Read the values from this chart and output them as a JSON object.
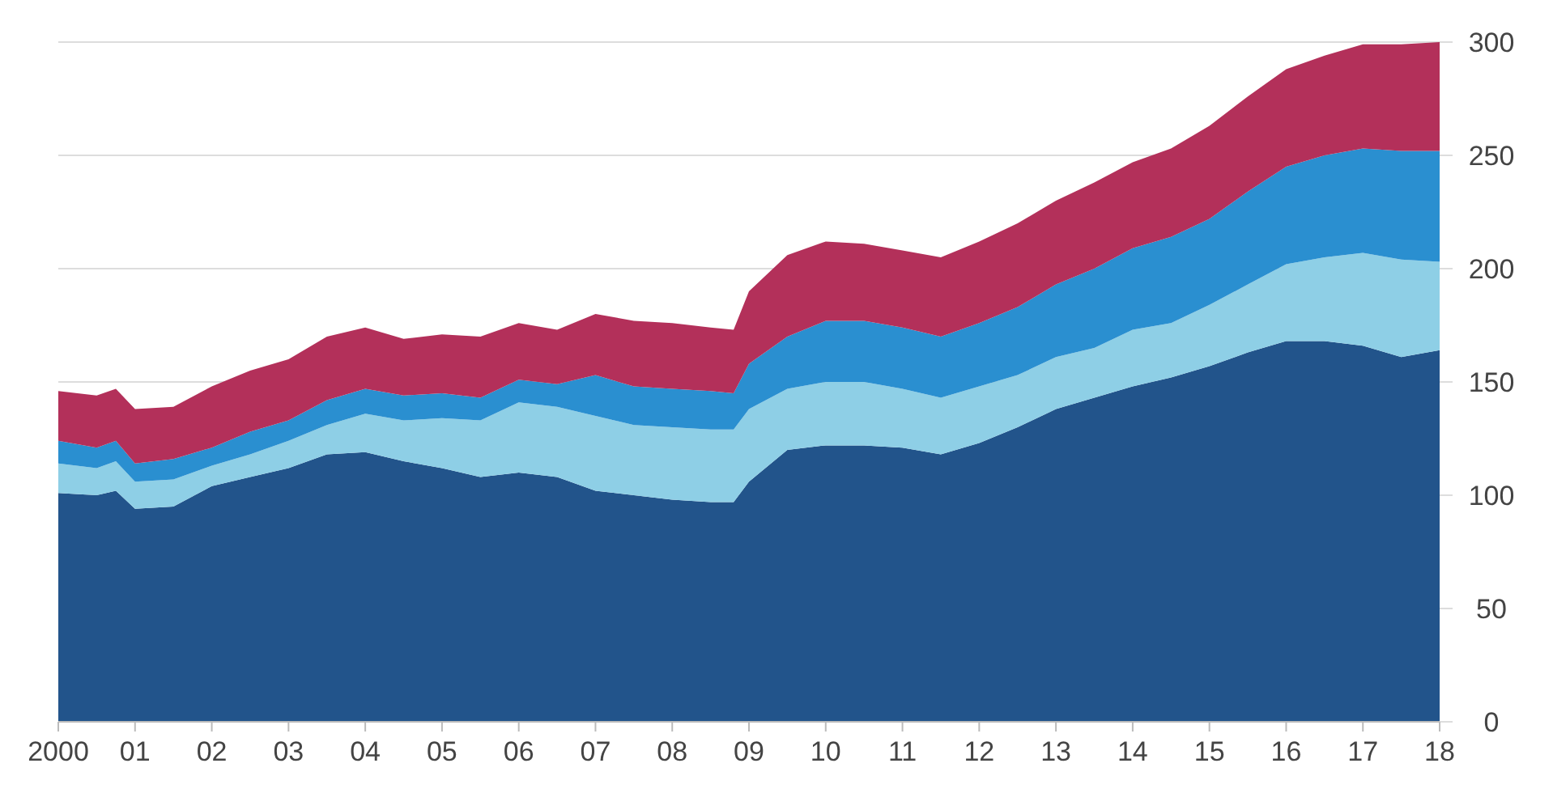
{
  "chart_data": {
    "type": "area",
    "stacked": true,
    "x": [
      2000,
      2000.5,
      2000.75,
      2001,
      2001.5,
      2002,
      2002.5,
      2003,
      2003.5,
      2004,
      2004.5,
      2005,
      2005.5,
      2006,
      2006.5,
      2007,
      2007.5,
      2008,
      2008.5,
      2008.8,
      2009,
      2009.5,
      2010,
      2010.5,
      2011,
      2011.5,
      2012,
      2012.5,
      2013,
      2013.5,
      2014,
      2014.5,
      2015,
      2015.5,
      2016,
      2016.5,
      2017,
      2017.5,
      2018
    ],
    "series": [
      {
        "color": "#22548b",
        "values": [
          101,
          100,
          102,
          94,
          95,
          104,
          108,
          112,
          118,
          119,
          115,
          112,
          108,
          110,
          108,
          102,
          100,
          98,
          97,
          97,
          106,
          120,
          122,
          122,
          121,
          118,
          123,
          130,
          138,
          143,
          148,
          152,
          157,
          163,
          168,
          168,
          166,
          161,
          164
        ]
      },
      {
        "color": "#8ecfe6",
        "values": [
          13,
          12,
          13,
          12,
          12,
          9,
          10,
          12,
          13,
          17,
          18,
          22,
          25,
          31,
          31,
          33,
          31,
          32,
          32,
          32,
          32,
          27,
          28,
          28,
          26,
          25,
          25,
          23,
          23,
          22,
          25,
          24,
          27,
          30,
          34,
          37,
          41,
          43,
          39
        ]
      },
      {
        "color": "#2a8fd0",
        "values": [
          10,
          9,
          9,
          8,
          9,
          8,
          10,
          9,
          11,
          11,
          11,
          11,
          10,
          10,
          10,
          18,
          17,
          17,
          17,
          16,
          20,
          23,
          27,
          27,
          27,
          27,
          28,
          30,
          32,
          35,
          36,
          38,
          38,
          41,
          43,
          45,
          46,
          48,
          49
        ]
      },
      {
        "color": "#b3305a",
        "values": [
          22,
          23,
          23,
          24,
          23,
          27,
          27,
          27,
          28,
          27,
          25,
          26,
          27,
          25,
          24,
          27,
          29,
          29,
          28,
          28,
          32,
          36,
          35,
          34,
          34,
          35,
          36,
          37,
          37,
          38,
          38,
          39,
          41,
          42,
          43,
          44,
          46,
          47,
          48
        ]
      }
    ],
    "xlim": [
      2000,
      2018
    ],
    "xticks": [
      {
        "value": 2000,
        "label": "2000"
      },
      {
        "value": 2001,
        "label": "01"
      },
      {
        "value": 2002,
        "label": "02"
      },
      {
        "value": 2003,
        "label": "03"
      },
      {
        "value": 2004,
        "label": "04"
      },
      {
        "value": 2005,
        "label": "05"
      },
      {
        "value": 2006,
        "label": "06"
      },
      {
        "value": 2007,
        "label": "07"
      },
      {
        "value": 2008,
        "label": "08"
      },
      {
        "value": 2009,
        "label": "09"
      },
      {
        "value": 2010,
        "label": "10"
      },
      {
        "value": 2011,
        "label": "11"
      },
      {
        "value": 2012,
        "label": "12"
      },
      {
        "value": 2013,
        "label": "13"
      },
      {
        "value": 2014,
        "label": "14"
      },
      {
        "value": 2015,
        "label": "15"
      },
      {
        "value": 2016,
        "label": "16"
      },
      {
        "value": 2017,
        "label": "17"
      },
      {
        "value": 2018,
        "label": "18"
      }
    ],
    "ylim": [
      0,
      300
    ],
    "yticks": [
      0,
      50,
      100,
      150,
      200,
      250,
      300
    ],
    "grid": "y"
  }
}
